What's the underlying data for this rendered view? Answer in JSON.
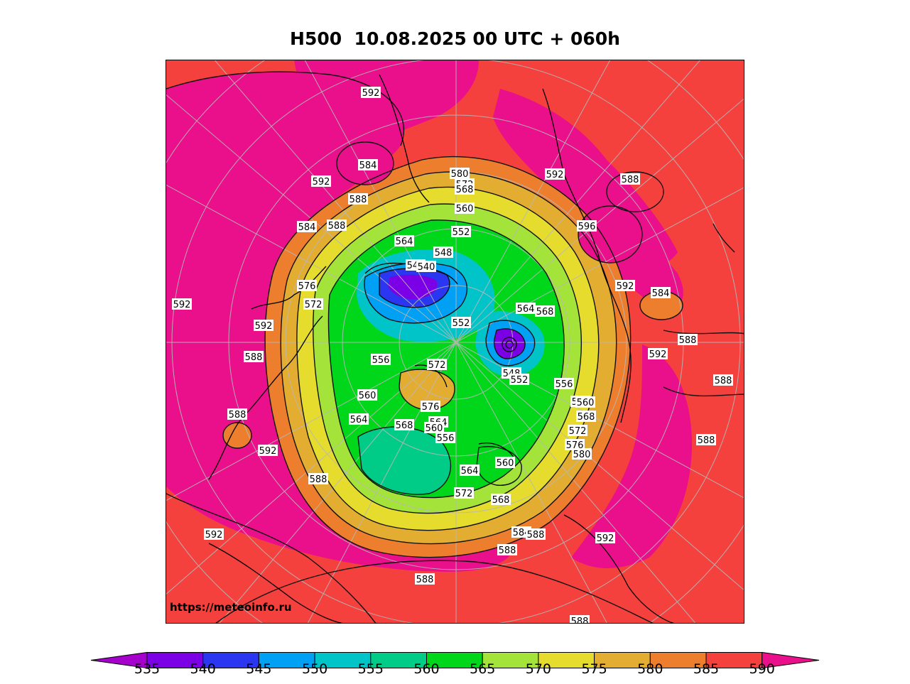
{
  "title": "H500  10.08.2025 00 UTC + 060h",
  "credit": "https://meteoinfo.ru",
  "colorbar": {
    "levels": [
      "535",
      "540",
      "545",
      "550",
      "555",
      "560",
      "565",
      "570",
      "575",
      "580",
      "585",
      "590"
    ],
    "colors": [
      "#8a00d6",
      "#7b00e6",
      "#2a36f0",
      "#00a0f4",
      "#00c4c8",
      "#00cc88",
      "#00d61a",
      "#a4e33a",
      "#e6dc2e",
      "#e3ad32",
      "#ec7e2e",
      "#f4413e",
      "#ea0f8a"
    ],
    "under_color": "#a600cc",
    "over_color": "#ea0f8a"
  },
  "field_colors": {
    "hot": "#ea0f8a",
    "warm": "#f4413e",
    "orange": "#ec7e2e",
    "amber": "#e3ad32",
    "yellow": "#e6dc2e",
    "lime": "#a4e33a",
    "green": "#00d61a",
    "teal": "#00cc88",
    "cyan": "#00c4c8",
    "blue": "#00a0f4",
    "deep": "#2a36f0",
    "violet": "#7b00e6"
  },
  "contour_labels": [
    "592",
    "584",
    "592",
    "588",
    "588",
    "584",
    "592",
    "592",
    "588",
    "588",
    "592",
    "588",
    "592",
    "580",
    "572",
    "568",
    "560",
    "552",
    "564",
    "544",
    "540",
    "548",
    "576",
    "572",
    "552",
    "556",
    "564",
    "568",
    "548",
    "552",
    "556",
    "572",
    "560",
    "564",
    "576",
    "564",
    "560",
    "568",
    "564",
    "560",
    "556",
    "568",
    "572",
    "576",
    "580",
    "564",
    "560",
    "572",
    "568",
    "584",
    "588",
    "592",
    "588",
    "588",
    "596",
    "592",
    "584",
    "588",
    "592",
    "588",
    "588",
    "588",
    "592",
    "588"
  ]
}
